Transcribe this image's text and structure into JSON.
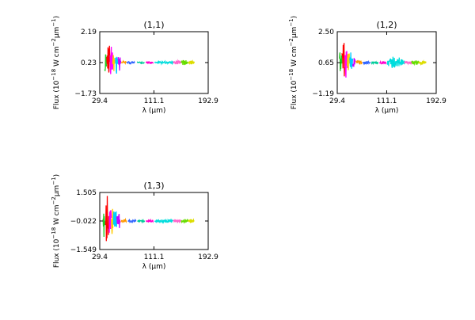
{
  "chart_data": [
    {
      "type": "line",
      "title": "(1,1)",
      "xlabel": "λ (μm)",
      "ylabel_main": "Flux (10",
      "ylabel_exp1": "−18",
      "ylabel_mid": " W cm",
      "ylabel_exp2": "−2",
      "ylabel_um": "μm",
      "ylabel_exp3": "−1",
      "ylabel_close": ")",
      "xlim": [
        29.4,
        192.9
      ],
      "ylim": [
        -1.73,
        2.19
      ],
      "xticks": [
        29.4,
        111.1,
        192.9
      ],
      "xtick_labels": [
        "29.4",
        "111.1",
        "192.9"
      ],
      "yticks": [
        -1.73,
        0.23,
        2.19
      ],
      "ytick_labels": [
        "−1.73",
        "0.23",
        "2.19"
      ],
      "baseline": 0.23,
      "spike_scale": 1.0,
      "series": [
        {
          "color": "#22cc22",
          "x_range": [
            37,
            40
          ],
          "amp": 0.9
        },
        {
          "color": "#ff0000",
          "x_range": [
            40,
            45
          ],
          "amp": 1.6
        },
        {
          "color": "#ff00ff",
          "x_range": [
            45,
            49
          ],
          "amp": 1.2
        },
        {
          "color": "#ffcc00",
          "x_range": [
            49,
            52
          ],
          "amp": 0.8
        },
        {
          "color": "#00ccff",
          "x_range": [
            53,
            57
          ],
          "amp": 0.8
        },
        {
          "color": "#cc00ff",
          "x_range": [
            57,
            61
          ],
          "amp": 0.6
        },
        {
          "color": "#ff9900",
          "x_range": [
            62,
            70
          ],
          "amp": 0.12
        },
        {
          "color": "#3366ff",
          "x_range": [
            70,
            82
          ],
          "amp": 0.08
        },
        {
          "color": "#00cc99",
          "x_range": [
            86,
            97
          ],
          "amp": 0.06
        },
        {
          "color": "#ff00cc",
          "x_range": [
            99,
            110
          ],
          "amp": 0.07
        },
        {
          "color": "#00dddd",
          "x_range": [
            112,
            140
          ],
          "amp": 0.08
        },
        {
          "color": "#ff66cc",
          "x_range": [
            140,
            152
          ],
          "amp": 0.12
        },
        {
          "color": "#66dd00",
          "x_range": [
            152,
            163
          ],
          "amp": 0.18
        },
        {
          "color": "#dddd00",
          "x_range": [
            163,
            172
          ],
          "amp": 0.12
        }
      ]
    },
    {
      "type": "line",
      "title": "(1,2)",
      "xlabel": "λ (μm)",
      "ylabel_main": "Flux (10",
      "ylabel_exp1": "−18",
      "ylabel_mid": " W cm",
      "ylabel_exp2": "−2",
      "ylabel_um": "μm",
      "ylabel_exp3": "−1",
      "ylabel_close": ")",
      "xlim": [
        29.4,
        192.9
      ],
      "ylim": [
        -1.19,
        2.5
      ],
      "xticks": [
        29.4,
        111.1,
        192.9
      ],
      "xtick_labels": [
        "29.4",
        "111.1",
        "192.9"
      ],
      "yticks": [
        -1.19,
        0.65,
        2.5
      ],
      "ytick_labels": [
        "−1.19",
        "0.65",
        "2.50"
      ],
      "baseline": 0.65,
      "spike_scale": 1.0,
      "series": [
        {
          "color": "#22cc22",
          "x_range": [
            33,
            37
          ],
          "amp": 0.9
        },
        {
          "color": "#ff0000",
          "x_range": [
            37,
            42
          ],
          "amp": 1.7
        },
        {
          "color": "#ff00ff",
          "x_range": [
            42,
            46
          ],
          "amp": 0.9
        },
        {
          "color": "#ffcc00",
          "x_range": [
            46,
            50
          ],
          "amp": 0.7
        },
        {
          "color": "#00ccff",
          "x_range": [
            50,
            55
          ],
          "amp": 0.7
        },
        {
          "color": "#cc00ff",
          "x_range": [
            55,
            59
          ],
          "amp": 0.5
        },
        {
          "color": "#ff9900",
          "x_range": [
            60,
            70
          ],
          "amp": 0.15
        },
        {
          "color": "#3366ff",
          "x_range": [
            72,
            84
          ],
          "amp": 0.1
        },
        {
          "color": "#00cc99",
          "x_range": [
            86,
            97
          ],
          "amp": 0.08
        },
        {
          "color": "#ff00cc",
          "x_range": [
            99,
            110
          ],
          "amp": 0.08
        },
        {
          "color": "#00dddd",
          "x_range": [
            112,
            140
          ],
          "amp": 0.4
        },
        {
          "color": "#ff66cc",
          "x_range": [
            140,
            152
          ],
          "amp": 0.1
        },
        {
          "color": "#66dd00",
          "x_range": [
            152,
            164
          ],
          "amp": 0.15
        },
        {
          "color": "#dddd00",
          "x_range": [
            164,
            176
          ],
          "amp": 0.12
        }
      ]
    },
    {
      "type": "line",
      "title": "(1,3)",
      "xlabel": "λ (μm)",
      "ylabel_main": "Flux (10",
      "ylabel_exp1": "−18",
      "ylabel_mid": " W cm",
      "ylabel_exp2": "−2",
      "ylabel_um": "μm",
      "ylabel_exp3": "−1",
      "ylabel_close": ")",
      "xlim": [
        29.4,
        192.9
      ],
      "ylim": [
        -1.549,
        1.505
      ],
      "xticks": [
        29.4,
        111.1,
        192.9
      ],
      "xtick_labels": [
        "29.4",
        "111.1",
        "192.9"
      ],
      "yticks": [
        -1.549,
        -0.022,
        1.505
      ],
      "ytick_labels": [
        "−1.549",
        "−0.022",
        "1.505"
      ],
      "baseline": -0.022,
      "spike_scale": 1.0,
      "series": [
        {
          "color": "#22cc22",
          "x_range": [
            34,
            38
          ],
          "amp": 1.0
        },
        {
          "color": "#ff0000",
          "x_range": [
            38,
            43
          ],
          "amp": 1.4
        },
        {
          "color": "#ff00ff",
          "x_range": [
            43,
            47
          ],
          "amp": 1.0
        },
        {
          "color": "#ffcc00",
          "x_range": [
            47,
            50
          ],
          "amp": 0.8
        },
        {
          "color": "#00ccff",
          "x_range": [
            50,
            55
          ],
          "amp": 0.7
        },
        {
          "color": "#cc00ff",
          "x_range": [
            55,
            60
          ],
          "amp": 0.5
        },
        {
          "color": "#ff9900",
          "x_range": [
            61,
            70
          ],
          "amp": 0.1
        },
        {
          "color": "#3366ff",
          "x_range": [
            72,
            84
          ],
          "amp": 0.08
        },
        {
          "color": "#00cc99",
          "x_range": [
            86,
            97
          ],
          "amp": 0.06
        },
        {
          "color": "#ff00cc",
          "x_range": [
            99,
            110
          ],
          "amp": 0.06
        },
        {
          "color": "#00dddd",
          "x_range": [
            112,
            140
          ],
          "amp": 0.08
        },
        {
          "color": "#ff66cc",
          "x_range": [
            140,
            152
          ],
          "amp": 0.08
        },
        {
          "color": "#66dd00",
          "x_range": [
            152,
            163
          ],
          "amp": 0.1
        },
        {
          "color": "#dddd00",
          "x_range": [
            163,
            172
          ],
          "amp": 0.1
        }
      ]
    }
  ]
}
